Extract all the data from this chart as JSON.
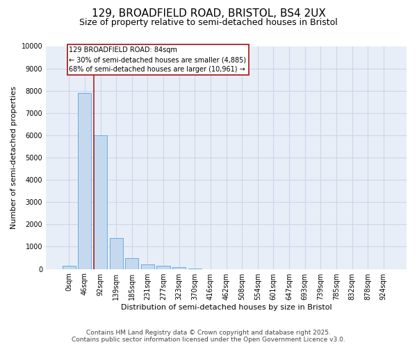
{
  "title_line1": "129, BROADFIELD ROAD, BRISTOL, BS4 2UX",
  "title_line2": "Size of property relative to semi-detached houses in Bristol",
  "xlabel": "Distribution of semi-detached houses by size in Bristol",
  "ylabel": "Number of semi-detached properties",
  "categories": [
    "0sqm",
    "46sqm",
    "92sqm",
    "139sqm",
    "185sqm",
    "231sqm",
    "277sqm",
    "323sqm",
    "370sqm",
    "416sqm",
    "462sqm",
    "508sqm",
    "554sqm",
    "601sqm",
    "647sqm",
    "693sqm",
    "739sqm",
    "785sqm",
    "832sqm",
    "878sqm",
    "924sqm"
  ],
  "values": [
    150,
    7900,
    6000,
    1400,
    480,
    220,
    150,
    70,
    15,
    0,
    0,
    0,
    0,
    0,
    0,
    0,
    0,
    0,
    0,
    0,
    0
  ],
  "bar_color": "#c5d9ee",
  "bar_edge_color": "#6aace0",
  "vline_color": "#aa2222",
  "annotation_text": "129 BROADFIELD ROAD: 84sqm\n← 30% of semi-detached houses are smaller (4,885)\n68% of semi-detached houses are larger (10,961) →",
  "annotation_box_edgecolor": "#aa2222",
  "ylim_max": 10000,
  "ytick_step": 1000,
  "grid_color": "#ccd6e8",
  "bg_color": "#e8eef8",
  "footer_line1": "Contains HM Land Registry data © Crown copyright and database right 2025.",
  "footer_line2": "Contains public sector information licensed under the Open Government Licence v3.0.",
  "title1_fontsize": 11,
  "title2_fontsize": 9,
  "ylabel_fontsize": 8,
  "xlabel_fontsize": 8,
  "tick_fontsize": 7,
  "annotation_fontsize": 7,
  "footer_fontsize": 6.5,
  "vline_x": 1.57
}
